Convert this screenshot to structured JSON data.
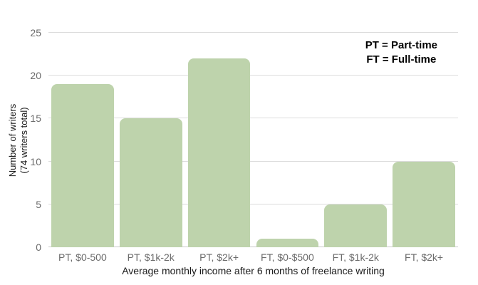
{
  "chart_data": {
    "type": "bar",
    "title": "",
    "categories": [
      "PT, $0-500",
      "PT, $1k-2k",
      "PT, $2k+",
      "FT, $0-$500",
      "FT, $1k-2k",
      "FT, $2k+"
    ],
    "values": [
      19,
      15,
      22,
      1,
      5,
      10
    ],
    "xlabel": "Average monthly income after 6 months of freelance writing",
    "ylabel_line1": "Number of writers",
    "ylabel_line2": "(74 writers total)",
    "ylim": [
      0,
      25
    ],
    "yticks": [
      0,
      5,
      10,
      15,
      20,
      25
    ],
    "grid": true,
    "legend_position": "top-right",
    "legend_lines": [
      "PT = Part-time",
      "FT = Full-time"
    ]
  },
  "colors": {
    "bar": "#bed3ac",
    "gridline": "#dcdcdc",
    "axis_line": "#c9c9c9",
    "tick_text": "#6b6b6b",
    "title_text": "#1a1a1a",
    "legend_text": "#000000",
    "background": "#ffffff"
  }
}
